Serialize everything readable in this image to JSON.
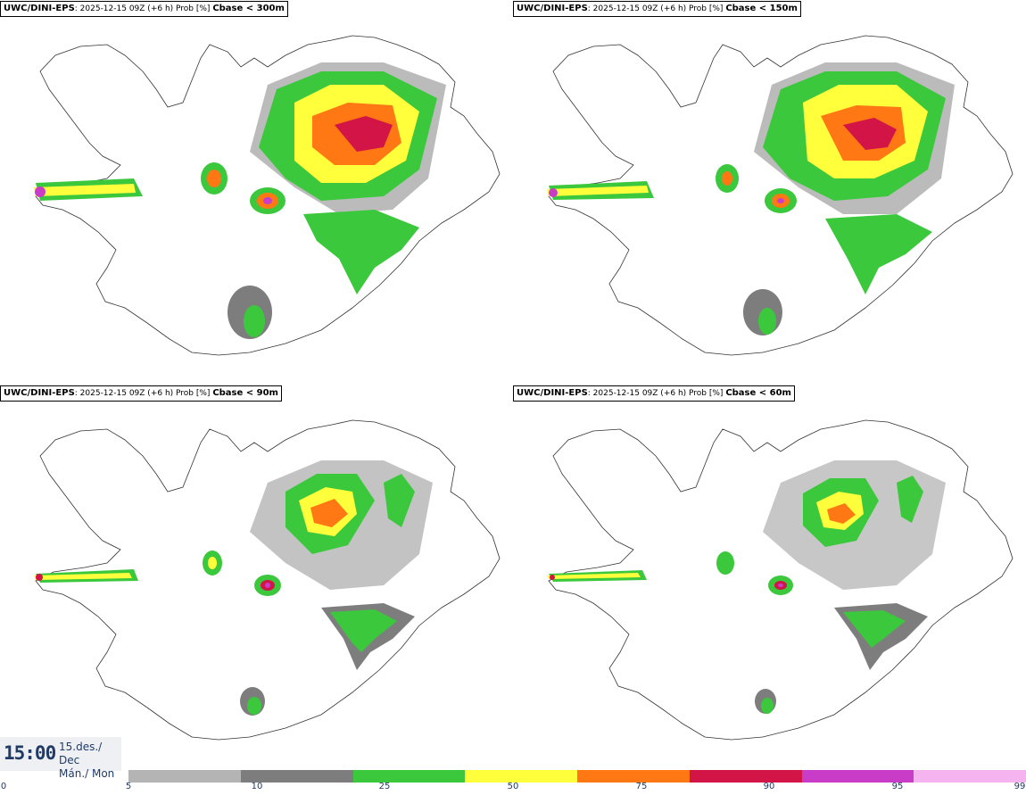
{
  "panels": [
    {
      "model": "UWC/DINI-EPS",
      "info": ": 2025-12-15 09Z (+6 h) Prob [%] ",
      "threshold": "Cbase < 300m"
    },
    {
      "model": "UWC/DINI-EPS",
      "info": ": 2025-12-15 09Z (+6 h) Prob [%] ",
      "threshold": "Cbase < 150m"
    },
    {
      "model": "UWC/DINI-EPS",
      "info": ": 2025-12-15 09Z (+6 h) Prob [%] ",
      "threshold": "Cbase < 90m"
    },
    {
      "model": "UWC/DINI-EPS",
      "info": ": 2025-12-15 09Z (+6 h) Prob [%] ",
      "threshold": "Cbase < 60m"
    }
  ],
  "valid_time": {
    "time": "15:00",
    "date": "15.des./ Dec",
    "day": "Mán./ Mon"
  },
  "colorbar": {
    "colors": [
      "#b4b4b4",
      "#7d7d7d",
      "#3cc83c",
      "#ffff3c",
      "#ff7814",
      "#d21446",
      "#c83cc8",
      "#f5b4f0"
    ],
    "ticks": [
      "0",
      "5",
      "10",
      "25",
      "50",
      "75",
      "90",
      "95",
      "99"
    ]
  }
}
